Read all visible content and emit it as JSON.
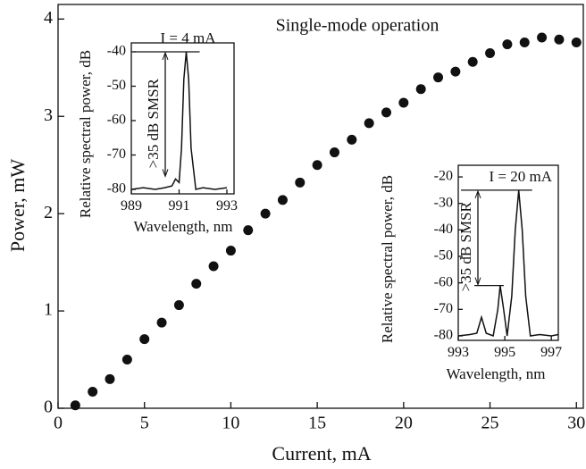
{
  "chart_data": [
    {
      "type": "scatter",
      "annotation": "Single-mode operation",
      "x_label": "Current, mA",
      "y_label": "Power, mW",
      "x": [
        1,
        2,
        3,
        4,
        5,
        6,
        7,
        8,
        9,
        10,
        11,
        12,
        13,
        14,
        15,
        16,
        17,
        18,
        19,
        20,
        21,
        22,
        23,
        24,
        25,
        26,
        27,
        28,
        29,
        30
      ],
      "values": [
        0.03,
        0.17,
        0.3,
        0.5,
        0.71,
        0.88,
        1.06,
        1.28,
        1.46,
        1.62,
        1.83,
        2.0,
        2.14,
        2.32,
        2.5,
        2.63,
        2.76,
        2.93,
        3.04,
        3.14,
        3.28,
        3.4,
        3.46,
        3.56,
        3.65,
        3.74,
        3.76,
        3.81,
        3.79,
        3.76
      ],
      "color": "#111111",
      "xlim": [
        0,
        30.4
      ],
      "ylim": [
        0,
        4.15
      ],
      "xticks": [
        0,
        5,
        10,
        15,
        20,
        25,
        30
      ],
      "yticks": [
        0,
        1,
        2,
        3,
        4
      ]
    },
    {
      "type": "line",
      "current_label": "I = 4 mA",
      "smsr_label": ">35 dB SMSR",
      "x_label": "Wavelength, nm",
      "y_label": "Relative spectral power, dB",
      "x": [
        989.0,
        989.5,
        990.0,
        990.4,
        990.7,
        990.85,
        991.0,
        991.1,
        991.2,
        991.3,
        991.4,
        991.5,
        991.7,
        992.0,
        992.5,
        993.0
      ],
      "values": [
        -80,
        -79.5,
        -80,
        -79.5,
        -79,
        -77,
        -78,
        -68,
        -48,
        -40,
        -48,
        -68,
        -80,
        -79.5,
        -80,
        -79.5
      ],
      "color": "#111111",
      "xlim": [
        989,
        993.3
      ],
      "ylim": [
        -81.3,
        -37.4
      ],
      "xticks": [
        989,
        991,
        993
      ],
      "yticks": [
        -80,
        -70,
        -60,
        -50,
        -40
      ]
    },
    {
      "type": "line",
      "current_label": "I = 20 mA",
      "smsr_label": ">35 dB SMSR",
      "x_label": "Wavelength, nm",
      "y_label": "Relative spectral power, dB",
      "x": [
        993.0,
        993.5,
        993.8,
        994.0,
        994.2,
        994.5,
        994.7,
        994.8,
        994.95,
        995.1,
        995.3,
        995.45,
        995.6,
        995.75,
        995.9,
        996.1,
        996.5,
        997.0,
        997.3
      ],
      "values": [
        -80,
        -79.5,
        -79,
        -73,
        -79,
        -80,
        -70,
        -61,
        -70,
        -80,
        -65,
        -40,
        -25,
        -40,
        -65,
        -80,
        -79.5,
        -80,
        -79.5
      ],
      "color": "#111111",
      "xlim": [
        993,
        997.3
      ],
      "ylim": [
        -81.7,
        -15.6
      ],
      "xticks": [
        993,
        995,
        997
      ],
      "yticks": [
        -80,
        -70,
        -60,
        -50,
        -40,
        -30,
        -20
      ]
    }
  ]
}
